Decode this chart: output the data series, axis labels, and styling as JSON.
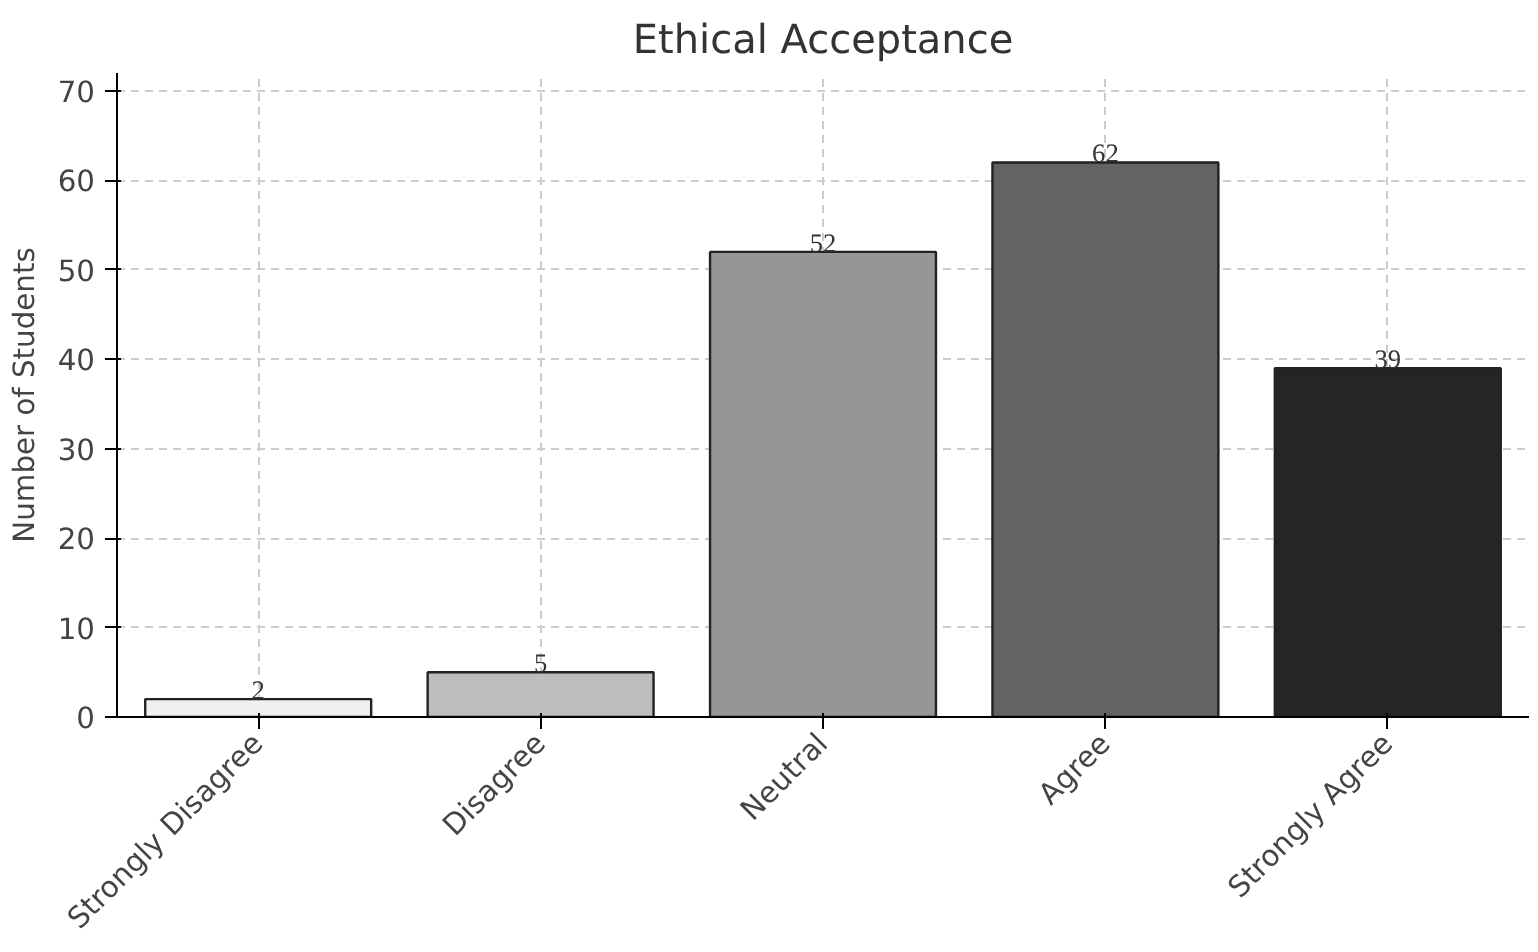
{
  "chart_data": {
    "type": "bar",
    "title": "Ethical Acceptance",
    "ylabel": "Number of Students",
    "categories": [
      "Strongly Disagree",
      "Disagree",
      "Neutral",
      "Agree",
      "Strongly Agree"
    ],
    "values": [
      2,
      5,
      52,
      62,
      39
    ],
    "colors": [
      "#f0f0f0",
      "#bdbdbd",
      "#969696",
      "#636363",
      "#252525"
    ],
    "ylim": [
      0,
      72
    ],
    "yticks": [
      0,
      10,
      20,
      30,
      40,
      50,
      60,
      70
    ],
    "grid": true,
    "data_labels": true
  }
}
